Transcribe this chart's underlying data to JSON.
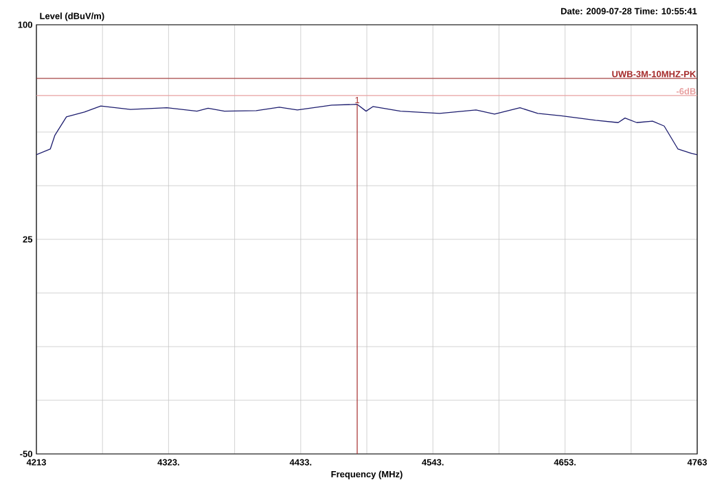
{
  "chart_data": {
    "type": "line",
    "ylabel": "Level (dBuV/m)",
    "xlabel": "Frequency (MHz)",
    "annotations": [
      "Date: 2009-07-28  Time: 10:55:41",
      {
        "text": "1",
        "x": 4480,
        "y": 72.2
      }
    ],
    "x": [
      4213,
      4224.6,
      4228.4,
      4238,
      4253,
      4266.6,
      4291.3,
      4321.6,
      4346.6,
      4355.9,
      4369.5,
      4396,
      4415.2,
      4430.2,
      4458.8,
      4480,
      4487.4,
      4493.1,
      4516,
      4548.6,
      4578.9,
      4594.3,
      4615.5,
      4630.3,
      4649.8,
      4678.4,
      4697.2,
      4702.9,
      4712.7,
      4725.8,
      4735.5,
      4746.9,
      4758.4,
      4763
    ],
    "series": [
      {
        "color": "#1c1c6e",
        "values": [
          54.6,
          56.6,
          61.4,
          67.8,
          69.5,
          71.6,
          70.4,
          71.0,
          69.8,
          70.8,
          69.8,
          70.0,
          71.2,
          70.2,
          71.9,
          72.2,
          69.8,
          71.4,
          69.8,
          69.0,
          70.2,
          68.8,
          71.0,
          69.0,
          68.2,
          66.6,
          65.8,
          67.4,
          65.8,
          66.3,
          64.6,
          56.6,
          55.0,
          54.6
        ]
      }
    ],
    "xlim": [
      4213,
      4763
    ],
    "ylim": [
      -50,
      100
    ],
    "xticks": [
      4213,
      {
        "value": 4268,
        "label": null
      },
      {
        "value": 4323,
        "label": "4323."
      },
      {
        "value": 4378,
        "label": null
      },
      {
        "value": 4433,
        "label": "4433."
      },
      {
        "value": 4488,
        "label": null
      },
      {
        "value": 4543,
        "label": "4543."
      },
      {
        "value": 4598,
        "label": null
      },
      {
        "value": 4653,
        "label": "4653."
      },
      {
        "value": 4708,
        "label": null
      },
      4763
    ],
    "yticks": [
      -50,
      {
        "value": -31.25,
        "label": null
      },
      {
        "value": -12.5,
        "label": null
      },
      {
        "value": 6.25,
        "label": null
      },
      25,
      {
        "value": 43.75,
        "label": null
      },
      {
        "value": 62.5,
        "label": null
      },
      {
        "value": 81.25,
        "label": null
      },
      100
    ],
    "ref_lines": [
      {
        "axis": "y",
        "value": 81.25,
        "label": "UWB-3M-10MHZ-PK",
        "color": "#a52a2a"
      },
      {
        "axis": "y",
        "value": 75.25,
        "label": "-6dB",
        "color": "#e8a0a0"
      },
      {
        "axis": "x",
        "value": 4480,
        "color": "#a52a2a"
      }
    ],
    "grid": true,
    "marker": "none",
    "line_style": "solid"
  }
}
